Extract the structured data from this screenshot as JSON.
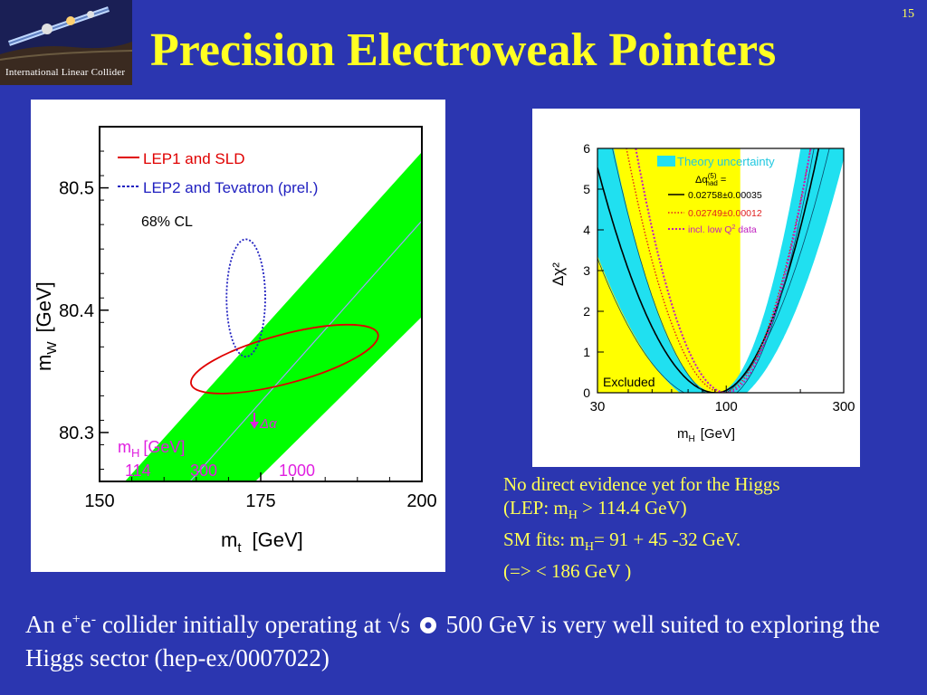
{
  "slide": {
    "number": "15",
    "title": "Precision Electroweak Pointers",
    "logo_text": "International Linear Collider"
  },
  "notes": {
    "line1": "No direct evidence yet for the Higgs",
    "line2_pre": "(LEP: m",
    "line2_sub": "H",
    "line2_post": " > 114.4 GeV)",
    "line3_pre": "SM fits: m",
    "line3_sub": "H",
    "line3_post": "= 91 + 45 -32 GeV.",
    "line4": "(=>  < 186 GeV )"
  },
  "bottom": {
    "part1": "An e",
    "sup1": "+",
    "part2": "e",
    "sup2": "-",
    "part3": " collider initially operating at √s ",
    "part4": " 500 GeV is very well suited to exploring the Higgs sector (hep-ex/0007022)"
  },
  "colors": {
    "background": "#2b36b0",
    "title": "#ffff22",
    "notes": "#ffff55",
    "band_green": "#00ff00",
    "lep1": "#e00000",
    "lep2": "#2020c0",
    "mh_label": "#e020e0",
    "excluded": "#ffff00",
    "theory_band": "#20e0f0",
    "dotted_red": "#e02020",
    "dotted_magenta": "#c020c0"
  },
  "chart_data": [
    {
      "type": "scatter",
      "xlabel_main": "m",
      "xlabel_sub": "t",
      "xlabel_unit": "[GeV]",
      "ylabel_main": "m",
      "ylabel_sub": "W",
      "ylabel_unit": "[GeV]",
      "xlim": [
        150,
        200
      ],
      "ylim": [
        80.26,
        80.55
      ],
      "x_ticks": [
        "150",
        "175",
        "200"
      ],
      "y_ticks": [
        "80.3",
        "80.4",
        "80.5"
      ],
      "legend": {
        "lep1": "LEP1 and SLD",
        "lep2": "LEP2 and Tevatron (prel.)",
        "cl": "68% CL"
      },
      "mh_label_main": "m",
      "mh_label_sub": "H",
      "mh_label_unit": "[GeV]",
      "mh_values": [
        "114",
        "300",
        "1000"
      ],
      "delta_alpha_label": "Δα",
      "series": [
        {
          "name": "LEP1 and SLD",
          "shape": "ellipse",
          "center": [
            178.7,
            80.36
          ],
          "semi_major": 15,
          "semi_minor": 0.02,
          "tilt": "slightly rising"
        },
        {
          "name": "LEP2 and Tevatron (prel.)",
          "shape": "ellipse",
          "center": [
            172.7,
            80.41
          ],
          "half_width": 3,
          "half_height": 0.048
        }
      ]
    },
    {
      "type": "line",
      "xlabel_main": "m",
      "xlabel_sub": "H",
      "xlabel_unit": "[GeV]",
      "ylabel": "Δχ²",
      "x_scale": "log",
      "xlim": [
        30,
        300
      ],
      "ylim": [
        0,
        6
      ],
      "x_ticks": [
        "30",
        "100",
        "300"
      ],
      "y_ticks": [
        "0",
        "1",
        "2",
        "3",
        "4",
        "5",
        "6"
      ],
      "excluded_label": "Excluded",
      "excluded_upper": 114,
      "legend": {
        "theory": "Theory uncertainty",
        "alpha_label": "Δα",
        "alpha_sup": "(5)",
        "alpha_sub": "had",
        "alpha_eq": "=",
        "solid": "0.02758±0.00035",
        "dotted": "0.02749±0.00012",
        "magenta": "incl. low Q",
        "magenta_sup": "2",
        "magenta_tail": " data"
      },
      "series": [
        {
          "name": "0.02758±0.00035",
          "minimum_at": 91,
          "points": [
            [
              30,
              6.0
            ],
            [
              50,
              2.6
            ],
            [
              70,
              0.8
            ],
            [
              91,
              0.0
            ],
            [
              120,
              0.75
            ],
            [
              200,
              4.4
            ],
            [
              232,
              6.0
            ]
          ]
        },
        {
          "name": "0.02749±0.00012",
          "minimum_at": 97,
          "points": [
            [
              37,
              6.0
            ],
            [
              60,
              2.0
            ],
            [
              97,
              0.0
            ],
            [
              140,
              1.4
            ],
            [
              215,
              6.0
            ]
          ]
        },
        {
          "name": "incl. low Q2 data",
          "minimum_at": 100,
          "points": [
            [
              38,
              6.0
            ],
            [
              60,
              2.1
            ],
            [
              100,
              0.0
            ],
            [
              150,
              1.7
            ],
            [
              225,
              6.0
            ]
          ]
        }
      ]
    }
  ]
}
